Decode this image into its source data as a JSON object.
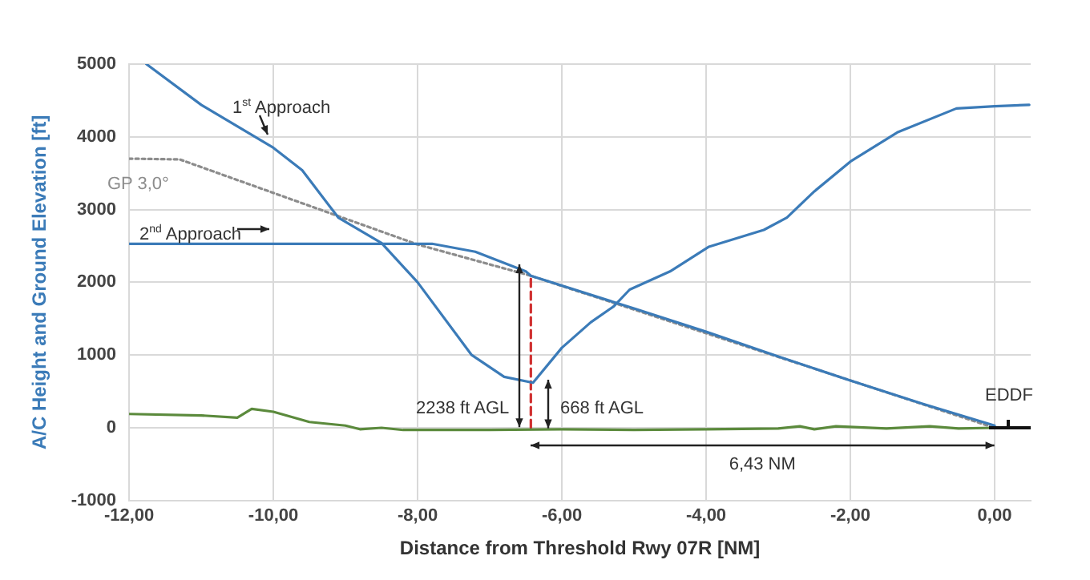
{
  "chart_data": {
    "type": "line",
    "xlabel": "Distance from Threshold Rwy 07R [NM]",
    "ylabel": "A/C Height and Ground Elevation [ft]",
    "xlim": [
      -12,
      0.5
    ],
    "xticks": [
      {
        "value": -12,
        "label": "-12,00"
      },
      {
        "value": -10,
        "label": "-10,00"
      },
      {
        "value": -8,
        "label": "-8,00"
      },
      {
        "value": -6,
        "label": "-6,00"
      },
      {
        "value": -4,
        "label": "-4,00"
      },
      {
        "value": -2,
        "label": "-2,00"
      },
      {
        "value": 0,
        "label": "0,00"
      }
    ],
    "ylim": [
      -1000,
      5000
    ],
    "yticks": [
      -1000,
      0,
      1000,
      2000,
      3000,
      4000,
      5000
    ],
    "grid": true,
    "legend": false,
    "marker": "none",
    "line_style": "solid",
    "series": [
      {
        "name": "1$^{st}$ Approach",
        "color": "#3b7bb8",
        "x": [
          -11.76,
          -11,
          -10,
          -9.6,
          -9.1,
          -8.5,
          -8,
          -7.25,
          -6.8,
          -6.4,
          -6,
          -5.6,
          -5.28,
          -5.06,
          -4.5,
          -3.96,
          -3.2,
          -2.88,
          -2.5,
          -2,
          -1.35,
          -0.53,
          0,
          0.48
        ],
        "values": [
          5000,
          4440,
          3850,
          3540,
          2890,
          2540,
          2000,
          1000,
          700,
          620,
          1100,
          1450,
          1670,
          1900,
          2150,
          2490,
          2720,
          2890,
          3250,
          3660,
          4060,
          4390,
          4420,
          4440
        ]
      },
      {
        "name": "2$^{nd}$ Approach",
        "color": "#3b7bb8",
        "x": [
          -12,
          -7.8,
          -7.2,
          -6.5,
          -6.43,
          -5,
          -4,
          -3,
          -2,
          -1,
          0
        ],
        "values": [
          2530,
          2530,
          2420,
          2150,
          2090,
          1640,
          1320,
          980,
          650,
          330,
          30
        ]
      },
      {
        "name": "GP 3,0°",
        "color": "#8c8c8c",
        "line_style": "dotted",
        "x": [
          -12,
          -11.3,
          -8,
          -6.43,
          0
        ],
        "values": [
          3700,
          3690,
          2520,
          2090,
          0
        ]
      },
      {
        "color": "#5b8a3c",
        "x": [
          -12,
          -11,
          -10.5,
          -10.3,
          -10,
          -9.5,
          -9,
          -8.8,
          -8.5,
          -8.2,
          -7,
          -6,
          -5,
          -4,
          -3,
          -2.7,
          -2.5,
          -2.2,
          -1.5,
          -0.9,
          -0.5,
          0,
          0.5
        ],
        "values": [
          190,
          170,
          140,
          260,
          220,
          80,
          30,
          -20,
          0,
          -30,
          -30,
          -20,
          -30,
          -20,
          -10,
          20,
          -20,
          20,
          -10,
          20,
          -10,
          0,
          0
        ]
      },
      {
        "color": "#d03030",
        "line_style": "dashed",
        "x": [
          -6.43,
          -6.43
        ],
        "values": [
          0,
          2090
        ]
      }
    ],
    "annotations": [
      {
        "text": "2238 ft AGL",
        "x": -6.6,
        "y": 2238
      },
      {
        "text": "668 ft AGL",
        "x": -6.2,
        "y": 668
      },
      "6,43 NM",
      {
        "text": "EDDF",
        "x": 0,
        "y": 0
      }
    ]
  }
}
